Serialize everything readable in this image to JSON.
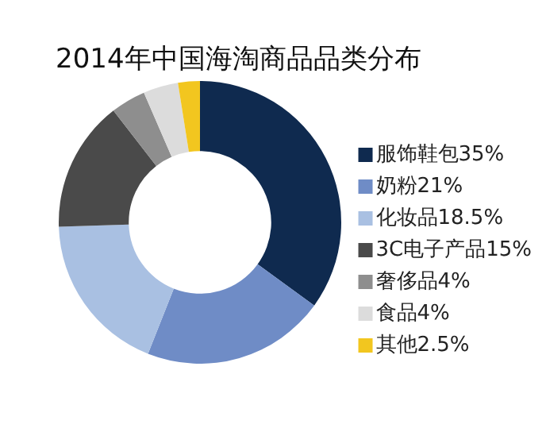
{
  "chart_data": {
    "type": "donut",
    "title": "2014年中国海淘商品品类分布",
    "categories": [
      "服饰鞋包35%",
      "奶粉21%",
      "化妆品18.5%",
      "3C电子产品15%",
      "奢侈品4%",
      "食品4%",
      "其他2.5%"
    ],
    "values": [
      35,
      21,
      18.5,
      15,
      4,
      4,
      2.5
    ],
    "colors": [
      "#0f2a4f",
      "#6f8cc6",
      "#a9c0e2",
      "#4a4a4a",
      "#8e8e8e",
      "#dcdcdc",
      "#f2c61f"
    ],
    "legend": "right"
  }
}
